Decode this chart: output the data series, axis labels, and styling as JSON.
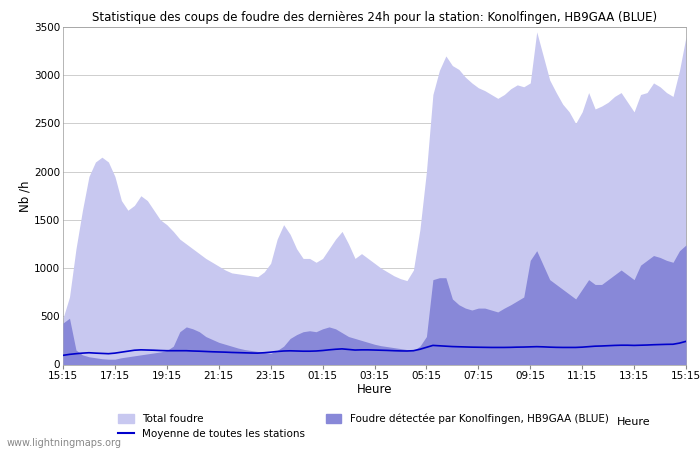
{
  "title": "Statistique des coups de foudre des dernières 24h pour la station: Konolfingen, HB9GAA (BLUE)",
  "xlabel": "Heure",
  "ylabel": "Nb /h",
  "xlim_labels": [
    "15:15",
    "17:15",
    "19:15",
    "21:15",
    "23:15",
    "01:15",
    "03:15",
    "05:15",
    "07:15",
    "09:15",
    "11:15",
    "13:15",
    "15:15"
  ],
  "ylim": [
    0,
    3500
  ],
  "yticks": [
    0,
    500,
    1000,
    1500,
    2000,
    2500,
    3000,
    3500
  ],
  "watermark": "www.lightningmaps.org",
  "legend_total": "Total foudre",
  "legend_local": "Foudre détectée par Konolfingen, HB9GAA (BLUE)",
  "legend_mean": "Moyenne de toutes les stations",
  "color_total": "#c8c8f0",
  "color_local": "#8888d8",
  "color_mean": "#0000cc",
  "total_foudre": [
    480,
    700,
    1200,
    1600,
    1950,
    2100,
    2150,
    2100,
    1950,
    1700,
    1600,
    1650,
    1750,
    1700,
    1600,
    1500,
    1450,
    1380,
    1300,
    1250,
    1200,
    1150,
    1100,
    1060,
    1020,
    980,
    950,
    940,
    930,
    920,
    910,
    960,
    1050,
    1300,
    1450,
    1350,
    1200,
    1100,
    1100,
    1060,
    1100,
    1200,
    1300,
    1380,
    1250,
    1100,
    1150,
    1100,
    1050,
    1000,
    960,
    920,
    890,
    870,
    980,
    1400,
    2000,
    2800,
    3050,
    3200,
    3100,
    3060,
    2980,
    2920,
    2870,
    2840,
    2800,
    2760,
    2800,
    2860,
    2900,
    2880,
    2920,
    3450,
    3200,
    2950,
    2820,
    2700,
    2620,
    2500,
    2620,
    2820,
    2650,
    2680,
    2720,
    2780,
    2820,
    2720,
    2620,
    2800,
    2820,
    2920,
    2880,
    2820,
    2780,
    3050,
    3400
  ],
  "local_foudre": [
    430,
    480,
    150,
    100,
    80,
    70,
    60,
    55,
    55,
    70,
    80,
    90,
    100,
    110,
    120,
    130,
    145,
    190,
    340,
    390,
    370,
    340,
    290,
    260,
    230,
    210,
    190,
    170,
    155,
    145,
    135,
    125,
    115,
    145,
    190,
    270,
    310,
    340,
    350,
    340,
    370,
    390,
    370,
    330,
    290,
    270,
    250,
    230,
    210,
    195,
    185,
    175,
    165,
    155,
    145,
    190,
    290,
    880,
    900,
    900,
    680,
    620,
    585,
    565,
    585,
    585,
    565,
    545,
    585,
    620,
    660,
    700,
    1080,
    1180,
    1030,
    880,
    830,
    780,
    730,
    680,
    780,
    880,
    830,
    830,
    880,
    930,
    980,
    930,
    880,
    1030,
    1080,
    1130,
    1110,
    1080,
    1060,
    1180,
    1240
  ],
  "mean_line": [
    95,
    105,
    112,
    118,
    122,
    118,
    115,
    112,
    118,
    128,
    138,
    148,
    152,
    150,
    148,
    145,
    143,
    143,
    143,
    143,
    140,
    138,
    135,
    132,
    130,
    128,
    125,
    123,
    121,
    119,
    118,
    122,
    128,
    135,
    140,
    142,
    140,
    138,
    138,
    140,
    145,
    152,
    158,
    162,
    156,
    150,
    152,
    152,
    150,
    148,
    146,
    143,
    141,
    140,
    143,
    158,
    178,
    198,
    194,
    190,
    186,
    184,
    182,
    180,
    179,
    178,
    177,
    177,
    177,
    178,
    180,
    181,
    183,
    185,
    183,
    180,
    178,
    177,
    177,
    177,
    180,
    185,
    190,
    192,
    195,
    198,
    200,
    200,
    198,
    200,
    202,
    205,
    207,
    209,
    210,
    222,
    240
  ]
}
